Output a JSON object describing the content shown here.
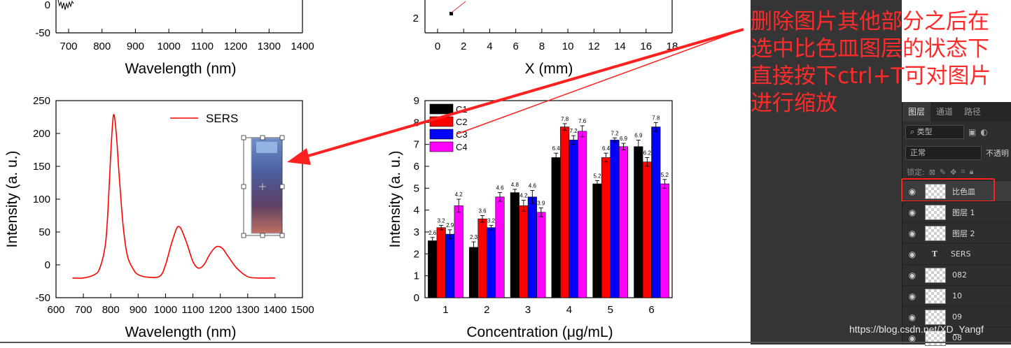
{
  "top_left_chart": {
    "y_ticks": [
      "0",
      "-50"
    ],
    "x_ticks": [
      "700",
      "800",
      "900",
      "1000",
      "1100",
      "1200",
      "1300",
      "1400"
    ],
    "xlabel": "Wavelength (nm)"
  },
  "top_right_chart": {
    "y_ticks": [
      "2"
    ],
    "x_ticks": [
      "0",
      "2",
      "4",
      "6",
      "8",
      "10",
      "12",
      "14",
      "16",
      "18"
    ],
    "xlabel": "X (mm)"
  },
  "chart_data": [
    {
      "type": "line",
      "title": "",
      "xlabel": "Wavelength (nm)",
      "ylabel": "Intensity (a. u.)",
      "xlim": [
        600,
        1500
      ],
      "ylim": [
        -50,
        250
      ],
      "x_ticks": [
        "600",
        "700",
        "800",
        "900",
        "1000",
        "1100",
        "1200",
        "1300",
        "1400",
        "1500"
      ],
      "y_ticks": [
        "-50",
        "0",
        "50",
        "100",
        "150",
        "200",
        "250"
      ],
      "legend": [
        "SERS"
      ],
      "legend_position": "top-right",
      "series": [
        {
          "name": "SERS",
          "color": "#ff0000",
          "x": [
            660,
            700,
            740,
            760,
            780,
            790,
            800,
            810,
            820,
            830,
            845,
            860,
            880,
            900,
            940,
            980,
            1000,
            1020,
            1040,
            1050,
            1060,
            1080,
            1100,
            1120,
            1140,
            1160,
            1180,
            1195,
            1210,
            1230,
            1260,
            1300,
            1340,
            1400
          ],
          "y": [
            -20,
            -20,
            -15,
            -5,
            30,
            85,
            170,
            228,
            200,
            140,
            60,
            15,
            -5,
            -15,
            -19,
            -17,
            0,
            30,
            55,
            58,
            52,
            30,
            5,
            -5,
            0,
            15,
            26,
            28,
            24,
            12,
            -5,
            -18,
            -20,
            -20
          ]
        }
      ]
    },
    {
      "type": "bar",
      "title": "",
      "xlabel": "Concentration (μg/mL)",
      "ylabel": "Intensity (a. u.)",
      "ylim": [
        0,
        9
      ],
      "y_ticks": [
        "0",
        "1",
        "2",
        "3",
        "4",
        "5",
        "6",
        "7",
        "8",
        "9"
      ],
      "categories": [
        "1",
        "2",
        "3",
        "4",
        "5",
        "6"
      ],
      "legend_position": "top-left",
      "series": [
        {
          "name": "C1",
          "color": "#000000",
          "values": [
            2.6,
            2.3,
            4.8,
            6.4,
            5.2,
            6.9
          ],
          "labels": [
            "2.6",
            "2.3",
            "4.8",
            "6.4",
            "5.2",
            "6.9"
          ],
          "errors": [
            0.15,
            0.25,
            0.15,
            0.2,
            0.15,
            0.3
          ]
        },
        {
          "name": "C2",
          "color": "#ff0000",
          "values": [
            3.2,
            3.6,
            4.2,
            7.8,
            6.4,
            6.2
          ],
          "labels": [
            "3.2",
            "3.6",
            "4.2",
            "7.8",
            "6.4",
            "6.2"
          ],
          "errors": [
            0.1,
            0.15,
            0.25,
            0.15,
            0.2,
            0.2
          ]
        },
        {
          "name": "C3",
          "color": "#0000ff",
          "values": [
            2.9,
            3.2,
            4.6,
            7.2,
            7.2,
            7.8
          ],
          "labels": [
            "2.9",
            "3.2",
            "4.6",
            "7.2",
            "7.2",
            "7.8"
          ],
          "errors": [
            0.2,
            0.1,
            0.3,
            0.2,
            0.1,
            0.2
          ]
        },
        {
          "name": "C4",
          "color": "#ff00ff",
          "values": [
            4.2,
            4.6,
            3.9,
            7.6,
            6.9,
            5.2
          ],
          "labels": [
            "4.2",
            "4.6",
            "3.9",
            "7.6",
            "6.9",
            "5.2"
          ],
          "errors": [
            0.3,
            0.2,
            0.2,
            0.25,
            0.15,
            0.2
          ]
        }
      ]
    }
  ],
  "annotation": {
    "lines": [
      "删除图片其他部分之后在",
      "选中比色皿图层的状态下",
      "直接按下ctrl+T可对图片",
      "进行缩放"
    ]
  },
  "layers_panel": {
    "tabs": [
      "图层",
      "通道",
      "路径"
    ],
    "filter_label": "⌕ 类型",
    "blend_mode": "正常",
    "opacity_label": "不透明",
    "lock_label": "锁定:",
    "layers": [
      {
        "name": "比色皿",
        "selected": true,
        "kind": "pixel"
      },
      {
        "name": "图层 1",
        "selected": false,
        "kind": "pixel"
      },
      {
        "name": "图层 2",
        "selected": false,
        "kind": "pixel"
      },
      {
        "name": "SERS",
        "selected": false,
        "kind": "text"
      },
      {
        "name": "082",
        "selected": false,
        "kind": "pixel"
      },
      {
        "name": "10",
        "selected": false,
        "kind": "pixel"
      },
      {
        "name": "09",
        "selected": false,
        "kind": "pixel"
      },
      {
        "name": "08",
        "selected": false,
        "kind": "pixel"
      }
    ]
  },
  "watermark": "https://blog.csdn.net/XD_Yangf",
  "colors": {
    "accent_red": "#ff2a2a",
    "panel_bg": "#2e2e2e"
  }
}
